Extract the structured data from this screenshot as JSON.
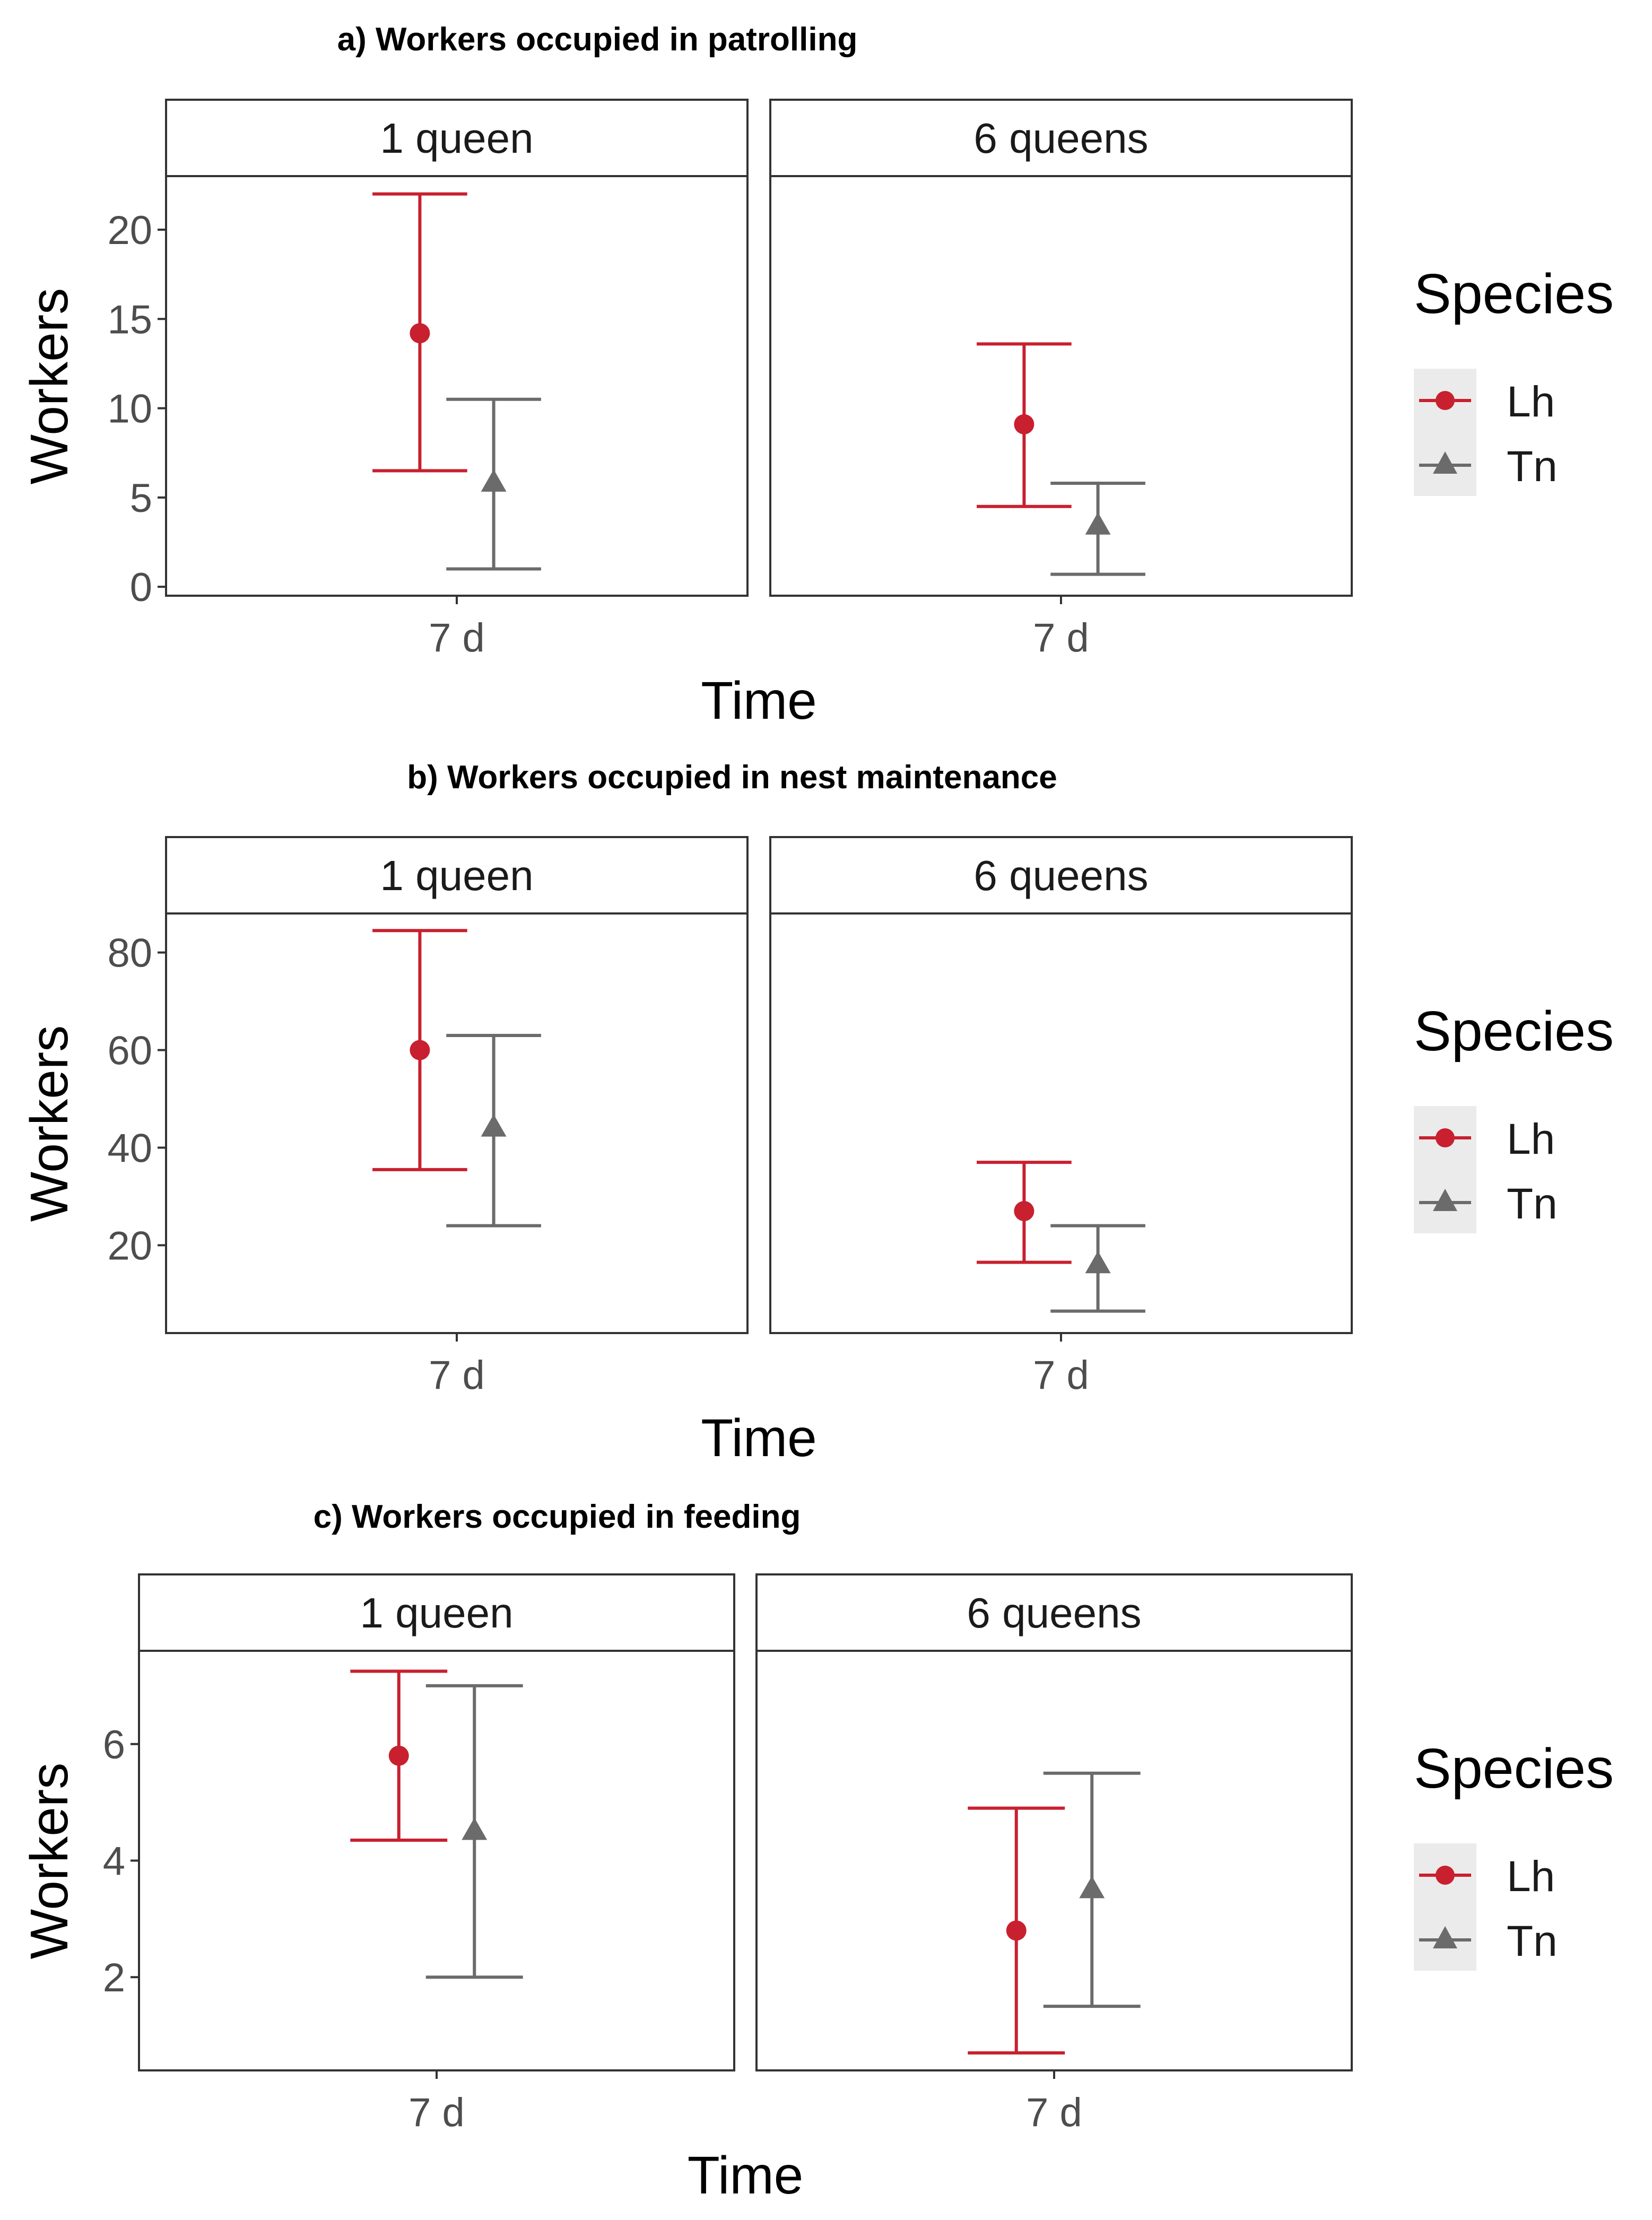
{
  "colors": {
    "Lh": "#C8202F",
    "Tn": "#6B6B6B"
  },
  "legend": {
    "title": "Species",
    "items": [
      {
        "label": "Lh",
        "shape": "circle"
      },
      {
        "label": "Tn",
        "shape": "triangle"
      }
    ]
  },
  "chart_data": [
    {
      "type": "errorbar",
      "title": "a) Workers occupied in patrolling",
      "xlabel": "Time",
      "ylabel": "Workers",
      "ylim": [
        -0.5,
        23
      ],
      "yticks": [
        0,
        5,
        10,
        15,
        20
      ],
      "facets": [
        {
          "label": "1 queen",
          "x_tick": "7 d",
          "series": [
            {
              "name": "Lh",
              "value": 14.2,
              "lower": 6.5,
              "upper": 22.0
            },
            {
              "name": "Tn",
              "value": 5.8,
              "lower": 1.0,
              "upper": 10.5
            }
          ]
        },
        {
          "label": "6 queens",
          "x_tick": "7 d",
          "series": [
            {
              "name": "Lh",
              "value": 9.1,
              "lower": 4.5,
              "upper": 13.6
            },
            {
              "name": "Tn",
              "value": 3.4,
              "lower": 0.7,
              "upper": 5.8
            }
          ]
        }
      ]
    },
    {
      "type": "errorbar",
      "title": "b) Workers occupied in nest maintenance",
      "xlabel": "Time",
      "ylabel": "Workers",
      "ylim": [
        2,
        88
      ],
      "yticks": [
        20,
        40,
        60,
        80
      ],
      "facets": [
        {
          "label": "1 queen",
          "x_tick": "7 d",
          "series": [
            {
              "name": "Lh",
              "value": 60,
              "lower": 35.5,
              "upper": 84.5
            },
            {
              "name": "Tn",
              "value": 44,
              "lower": 24,
              "upper": 63
            }
          ]
        },
        {
          "label": "6 queens",
          "x_tick": "7 d",
          "series": [
            {
              "name": "Lh",
              "value": 27,
              "lower": 16.5,
              "upper": 37
            },
            {
              "name": "Tn",
              "value": 16,
              "lower": 6.5,
              "upper": 24
            }
          ]
        }
      ]
    },
    {
      "type": "errorbar",
      "title": "c) Workers occupied in feeding",
      "xlabel": "Time",
      "ylabel": "Workers",
      "ylim": [
        0.4,
        7.6
      ],
      "yticks": [
        2,
        4,
        6
      ],
      "facets": [
        {
          "label": "1 queen",
          "x_tick": "7 d",
          "series": [
            {
              "name": "Lh",
              "value": 5.8,
              "lower": 4.35,
              "upper": 7.25
            },
            {
              "name": "Tn",
              "value": 4.5,
              "lower": 2.0,
              "upper": 7.0
            }
          ]
        },
        {
          "label": "6 queens",
          "x_tick": "7 d",
          "series": [
            {
              "name": "Lh",
              "value": 2.8,
              "lower": 0.7,
              "upper": 4.9
            },
            {
              "name": "Tn",
              "value": 3.5,
              "lower": 1.5,
              "upper": 5.5
            }
          ]
        }
      ]
    }
  ]
}
